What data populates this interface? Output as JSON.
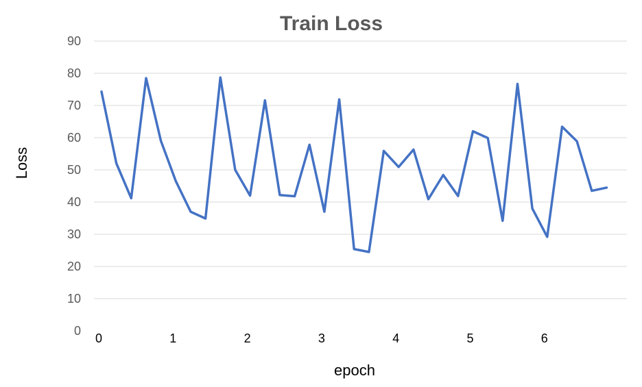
{
  "chart_data": {
    "type": "line",
    "title": "Train Loss",
    "xlabel": "epoch",
    "ylabel": "Loss",
    "ylim": [
      0,
      90
    ],
    "y_ticks": [
      0,
      10,
      20,
      30,
      40,
      50,
      60,
      70,
      80,
      90
    ],
    "x_ticks": [
      0,
      1,
      2,
      3,
      4,
      5,
      6
    ],
    "xlim": [
      0,
      7
    ],
    "grid": true,
    "legend": "none",
    "series": [
      {
        "color": "#4472c4",
        "x": [
          0.0,
          0.2,
          0.4,
          0.6,
          0.8,
          1.0,
          1.2,
          1.4,
          1.6,
          1.8,
          2.0,
          2.2,
          2.4,
          2.6,
          2.8,
          3.0,
          3.2,
          3.4,
          3.6,
          3.8,
          4.0,
          4.2,
          4.4,
          4.6,
          4.8,
          5.0,
          5.2,
          5.4,
          5.6,
          5.8,
          6.0,
          6.2,
          6.4,
          6.6,
          6.8
        ],
        "values": [
          74.3,
          52.0,
          41.2,
          78.5,
          59.0,
          46.5,
          37.0,
          34.9,
          78.7,
          50.0,
          42.0,
          71.6,
          42.2,
          41.8,
          57.8,
          37.0,
          71.9,
          25.4,
          24.5,
          55.9,
          50.9,
          56.3,
          40.9,
          48.4,
          41.9,
          62.0,
          59.9,
          34.2,
          76.7,
          38.0,
          29.2,
          63.4,
          58.9,
          43.5,
          44.5
        ]
      }
    ]
  }
}
